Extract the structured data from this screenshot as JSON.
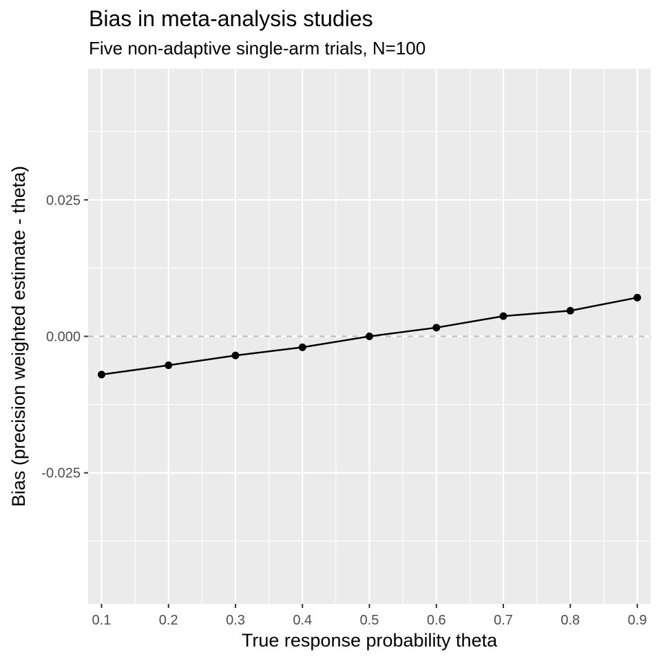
{
  "chart_data": {
    "type": "line",
    "title": "Bias in meta-analysis studies",
    "subtitle": "Five non-adaptive single-arm trials, N=100",
    "xlabel": "True response probability theta",
    "ylabel": "Bias (precision weighted estimate - theta)",
    "xlim": [
      0.08,
      0.92
    ],
    "ylim": [
      -0.049,
      0.049
    ],
    "x_ticks": [
      0.1,
      0.2,
      0.3,
      0.4,
      0.5,
      0.6,
      0.7,
      0.8,
      0.9
    ],
    "x_tick_labels": [
      "0.1",
      "0.2",
      "0.3",
      "0.4",
      "0.5",
      "0.6",
      "0.7",
      "0.8",
      "0.9"
    ],
    "y_ticks": [
      -0.025,
      0.0,
      0.025
    ],
    "y_tick_labels": [
      "-0.025",
      "0.000",
      "0.025"
    ],
    "reference_line": {
      "y": 0,
      "style": "dashed",
      "color": "#bebebe"
    },
    "grid": true,
    "legend": "none",
    "series": [
      {
        "color": "#000000",
        "x": [
          0.1,
          0.2,
          0.3,
          0.4,
          0.5,
          0.6,
          0.7,
          0.8,
          0.9
        ],
        "y": [
          -0.007,
          -0.0053,
          -0.0035,
          -0.002,
          0.0,
          0.0016,
          0.0037,
          0.0047,
          0.0071
        ]
      }
    ],
    "colors": {
      "panel_background": "#ebebeb",
      "grid_major": "#ffffff",
      "tick_text": "#4d4d4d",
      "tick_mark": "#333333"
    }
  }
}
